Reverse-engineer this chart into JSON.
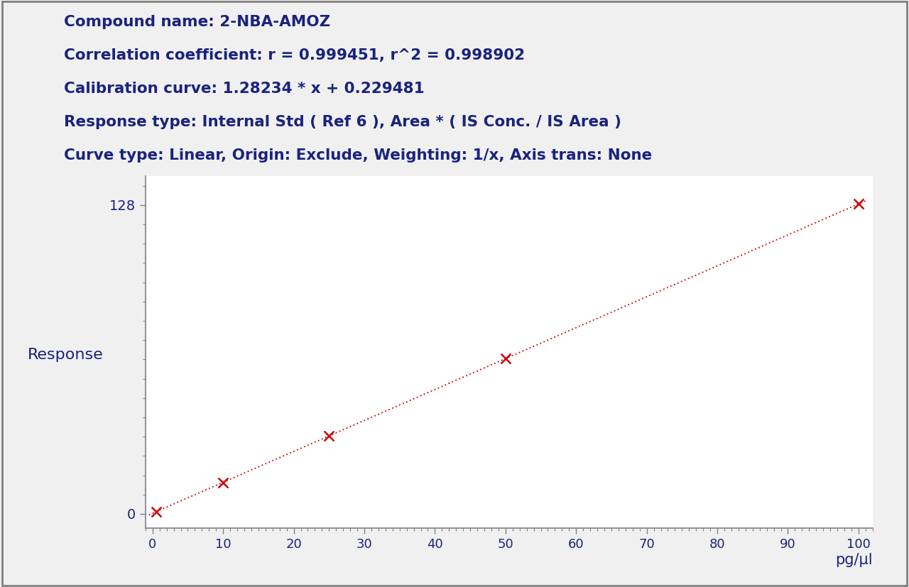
{
  "compound_name": "Compound name: 2-NBA-AMOZ",
  "corr_coeff": "Correlation coefficient: r = 0.999451, r^2 = 0.998902",
  "cal_curve": "Calibration curve: 1.28234 * x + 0.229481",
  "response_type": "Response type: Internal Std ( Ref 6 ), Area * ( IS Conc. / IS Area )",
  "curve_type": "Curve type: Linear, Origin: Exclude, Weighting: 1/x, Axis trans: None",
  "slope": 1.28234,
  "intercept": 0.229481,
  "data_x": [
    0.5,
    10,
    25,
    50,
    100
  ],
  "data_y": [
    0.8707,
    13.0529,
    32.2876,
    64.3461,
    128.463
  ],
  "x_label": "pg/µl",
  "y_label": "Response",
  "x_min": 0,
  "x_max": 100,
  "y_min": 0,
  "y_max": 140,
  "y_tick_positions": [
    0,
    128
  ],
  "x_tick_major": 10,
  "text_color": "#1a237e",
  "line_color": "#cc0000",
  "marker_color": "#cc0000",
  "bg_color": "#f0f0f0",
  "header_fontsize": 15.5,
  "axis_label_fontsize": 15,
  "tick_label_fontsize": 13
}
